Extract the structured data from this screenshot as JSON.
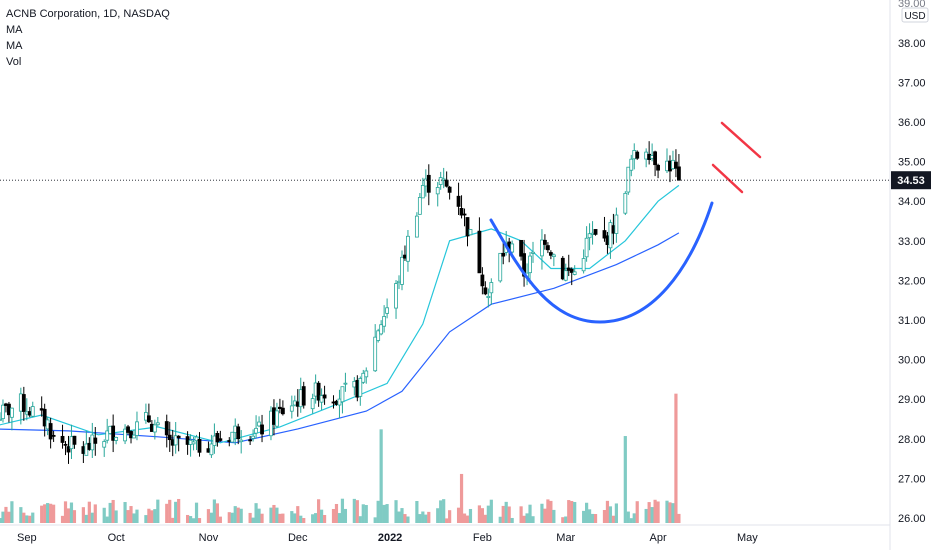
{
  "chart_data": {
    "type": "candlestick",
    "title": "ACNB Corporation, 1D, NASDAQ",
    "indicators": [
      "MA",
      "MA",
      "Vol"
    ],
    "currency": "USD",
    "last_price": "34.53",
    "ylim": [
      26.0,
      39.0
    ],
    "y_ticks": [
      "26.00",
      "27.00",
      "28.00",
      "29.00",
      "30.00",
      "31.00",
      "32.00",
      "33.00",
      "34.00",
      "35.00",
      "36.00",
      "37.00",
      "38.00",
      "39.00"
    ],
    "x_ticks": [
      "Sep",
      "Oct",
      "Nov",
      "Dec",
      "2022",
      "Feb",
      "Mar",
      "Apr",
      "May"
    ],
    "x_tick_dates": [
      "2021-09-01",
      "2021-10-01",
      "2021-11-01",
      "2021-12-01",
      "2022-01-01",
      "2022-02-01",
      "2022-03-01",
      "2022-04-01",
      "2022-05-01"
    ],
    "colors": {
      "up": "#26a69a",
      "down": "#000000",
      "vol_up": "#80cbc4",
      "vol_down": "#ef9a9a",
      "ma_fast": "#26c6da",
      "ma_slow": "#2962ff",
      "cup": "#2962ff",
      "flag": "#f23645"
    },
    "price_path": [
      [
        "2021-08-20",
        28.5
      ],
      [
        "2021-08-30",
        28.9
      ],
      [
        "2021-09-08",
        28.4
      ],
      [
        "2021-09-10",
        28.0
      ],
      [
        "2021-09-20",
        27.7
      ],
      [
        "2021-09-30",
        28.2
      ],
      [
        "2021-10-08",
        28.3
      ],
      [
        "2021-10-12",
        28.5
      ],
      [
        "2021-10-18",
        27.9
      ],
      [
        "2021-10-28",
        27.8
      ],
      [
        "2021-11-05",
        28.0
      ],
      [
        "2021-11-10",
        28.2
      ],
      [
        "2021-11-18",
        28.2
      ],
      [
        "2021-11-24",
        28.6
      ],
      [
        "2021-12-01",
        29.0
      ],
      [
        "2021-12-08",
        29.2
      ],
      [
        "2021-12-15",
        29.1
      ],
      [
        "2021-12-22",
        29.3
      ],
      [
        "2021-12-28",
        30.8
      ],
      [
        "2022-01-03",
        31.8
      ],
      [
        "2022-01-07",
        33.0
      ],
      [
        "2022-01-12",
        34.4
      ],
      [
        "2022-01-18",
        34.5
      ],
      [
        "2022-01-24",
        34.0
      ],
      [
        "2022-01-28",
        33.1
      ],
      [
        "2022-02-03",
        31.6
      ],
      [
        "2022-02-07",
        32.6
      ],
      [
        "2022-02-11",
        33.0
      ],
      [
        "2022-02-15",
        32.2
      ],
      [
        "2022-02-22",
        33.1
      ],
      [
        "2022-02-28",
        32.2
      ],
      [
        "2022-03-04",
        32.2
      ],
      [
        "2022-03-09",
        33.1
      ],
      [
        "2022-03-14",
        33.0
      ],
      [
        "2022-03-18",
        33.5
      ],
      [
        "2022-03-23",
        35.0
      ],
      [
        "2022-03-28",
        35.4
      ],
      [
        "2022-04-01",
        35.0
      ],
      [
        "2022-04-06",
        34.9
      ],
      [
        "2022-04-08",
        34.53
      ]
    ],
    "ma_fast_path": [
      [
        "2021-08-20",
        28.3
      ],
      [
        "2021-09-06",
        28.6
      ],
      [
        "2021-09-25",
        28.1
      ],
      [
        "2021-10-15",
        28.3
      ],
      [
        "2021-11-05",
        27.9
      ],
      [
        "2021-11-25",
        28.3
      ],
      [
        "2021-12-15",
        28.9
      ],
      [
        "2021-12-31",
        29.4
      ],
      [
        "2022-01-12",
        30.9
      ],
      [
        "2022-01-21",
        33.0
      ],
      [
        "2022-02-04",
        33.3
      ],
      [
        "2022-02-14",
        33.0
      ],
      [
        "2022-02-24",
        32.3
      ],
      [
        "2022-03-09",
        32.3
      ],
      [
        "2022-03-21",
        33.0
      ],
      [
        "2022-04-01",
        34.0
      ],
      [
        "2022-04-08",
        34.4
      ]
    ],
    "ma_slow_path": [
      [
        "2021-08-20",
        28.25
      ],
      [
        "2021-09-15",
        28.2
      ],
      [
        "2021-10-15",
        28.05
      ],
      [
        "2021-11-10",
        27.9
      ],
      [
        "2021-12-01",
        28.25
      ],
      [
        "2021-12-24",
        28.7
      ],
      [
        "2022-01-05",
        29.2
      ],
      [
        "2022-01-21",
        30.7
      ],
      [
        "2022-02-04",
        31.4
      ],
      [
        "2022-02-25",
        31.8
      ],
      [
        "2022-03-18",
        32.4
      ],
      [
        "2022-04-01",
        32.9
      ],
      [
        "2022-04-08",
        33.2
      ]
    ],
    "volume_spikes": [
      [
        "2021-12-29",
        0.42
      ],
      [
        "2022-01-25",
        0.22
      ],
      [
        "2022-03-21",
        0.39
      ],
      [
        "2022-04-07",
        0.58
      ]
    ]
  }
}
